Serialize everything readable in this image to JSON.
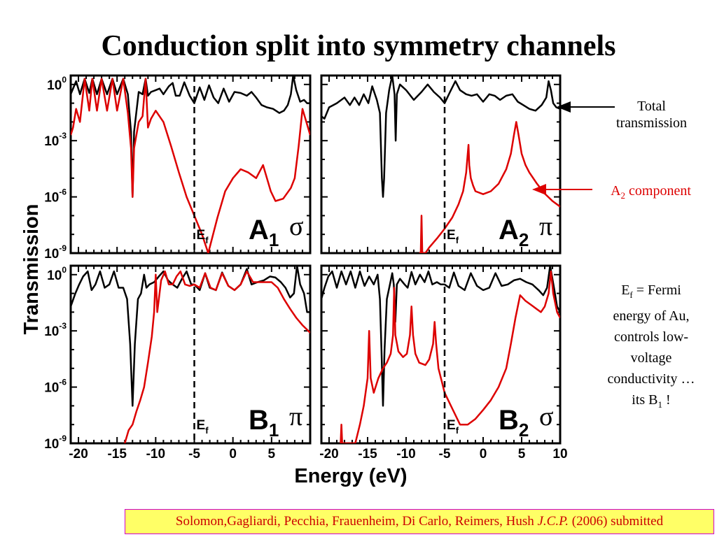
{
  "title": "Conduction split into symmetry channels",
  "annotations": {
    "total_line1": "Total",
    "total_line2": "transmission",
    "a2_base": "A",
    "a2_sub": "2",
    "a2_rest": " component",
    "fermi": [
      "E",
      "f",
      " = Fermi",
      "energy of Au,",
      "controls low-",
      "voltage",
      "conductivity …",
      "its B",
      "1",
      " !"
    ]
  },
  "citation": {
    "authors": "Solomon,Gagliardi, Pecchia, Frauenheim, Di Carlo, Reimers, Hush ",
    "journal": "J.C.P.",
    "rest": " (2006) submitted"
  },
  "colors": {
    "total": "#000000",
    "component": "#dd0000",
    "citation_bg": "#ffff66",
    "citation_border": "#d000d0"
  },
  "chart_data": {
    "type": "line",
    "xlabel": "Energy (eV)",
    "ylabel": "Transmission",
    "log_y": true,
    "ylim": [
      1e-09,
      3
    ],
    "fermi_energy": -5,
    "fermi_label": [
      "E",
      "f"
    ],
    "y_ticks": [
      {
        "base": "10",
        "exp": "0"
      },
      {
        "base": "10",
        "exp": "-3"
      },
      {
        "base": "10",
        "exp": "-6"
      },
      {
        "base": "10",
        "exp": "-9"
      }
    ],
    "x_ticks": [
      [
        "-20",
        "-15",
        "-10",
        "-5",
        "0",
        "5"
      ],
      [
        "-20",
        "-15",
        "-10",
        "-5",
        "0",
        "5",
        "10"
      ]
    ],
    "panels": [
      {
        "label": "A",
        "sub": "1",
        "greek": "σ",
        "xlim": [
          -21,
          10
        ],
        "series": [
          {
            "name": "Total",
            "x": [
              -21,
              -20.3,
              -19.8,
              -19.2,
              -18.6,
              -18.2,
              -17.6,
              -17,
              -16.3,
              -15.6,
              -15,
              -14.2,
              -13.6,
              -13.2,
              -13,
              -12.8,
              -12.2,
              -11.7,
              -11.3,
              -11,
              -10.6,
              -10,
              -9.5,
              -9,
              -8.3,
              -7.8,
              -7.4,
              -6.9,
              -6.3,
              -5.6,
              -5,
              -4.3,
              -3.7,
              -3.1,
              -2.5,
              -1.9,
              -1.2,
              -0.5,
              0.2,
              1,
              1.8,
              2.4,
              3,
              3.7,
              4.4,
              5.2,
              6,
              6.6,
              7.1,
              7.5,
              7.8,
              8.2,
              8.7,
              9.2,
              9.6,
              10
            ],
            "y": [
              0.3,
              1.5,
              0.3,
              2,
              0.35,
              2,
              0.3,
              2,
              0.3,
              2,
              0.3,
              2,
              0.3,
              0.003,
              1e-06,
              0.003,
              0.4,
              0.3,
              2,
              0.25,
              0.4,
              0.5,
              0.6,
              0.3,
              0.8,
              1.2,
              0.25,
              0.25,
              1.3,
              0.25,
              0.1,
              0.7,
              0.15,
              0.9,
              0.2,
              0.1,
              0.6,
              0.12,
              0.4,
              0.35,
              0.25,
              0.4,
              0.2,
              0.08,
              0.06,
              0.05,
              0.03,
              0.04,
              0.08,
              0.3,
              3,
              0.5,
              0.12,
              0.15,
              0.1,
              0.1
            ]
          },
          {
            "name": "A1 component",
            "x": [
              -21,
              -20.7,
              -20.3,
              -19.8,
              -19.2,
              -18.6,
              -18.2,
              -17.6,
              -17,
              -16.3,
              -15.6,
              -15,
              -14.2,
              -13.6,
              -13.2,
              -13,
              -12.8,
              -12.2,
              -11.7,
              -11.3,
              -11,
              -10.6,
              -10,
              -9,
              -8,
              -7,
              -6,
              -5,
              -4,
              -3.2,
              -2,
              -1,
              0,
              1,
              2,
              3,
              3.9,
              4.4,
              4.9,
              5.5,
              6.5,
              7.5,
              8,
              8.5,
              9,
              10
            ],
            "y": [
              0.002,
              0.005,
              0.05,
              0.01,
              2,
              0.04,
              2,
              0.04,
              2,
              0.04,
              2,
              0.04,
              2,
              0.03,
              0.0004,
              1e-06,
              0.0004,
              0.01,
              0.02,
              2,
              0.005,
              0.015,
              0.04,
              0.01,
              0.0005,
              2e-05,
              1e-06,
              1e-07,
              1e-08,
              1e-09,
              8e-08,
              2e-06,
              1e-05,
              3e-05,
              2e-05,
              1e-05,
              5e-05,
              1e-05,
              2e-06,
              6e-07,
              8e-07,
              3e-06,
              1e-05,
              0.0005,
              0.05,
              0.002
            ]
          }
        ]
      },
      {
        "label": "A",
        "sub": "2",
        "greek": "π",
        "xlim": [
          -21,
          10
        ],
        "series": [
          {
            "name": "Total",
            "x": [
              -21,
              -20.6,
              -20,
              -19,
              -18,
              -17.3,
              -16.7,
              -16.1,
              -15.5,
              -14.9,
              -14.4,
              -13.8,
              -13.4,
              -13.15,
              -13,
              -12.85,
              -12.6,
              -12.2,
              -11.8,
              -11.5,
              -11.35,
              -11.2,
              -10.8,
              -10,
              -9,
              -8,
              -7.2,
              -6.4,
              -5.6,
              -5,
              -4.3,
              -3.6,
              -3,
              -2.2,
              -1.5,
              -0.8,
              0,
              0.8,
              1.5,
              2.2,
              3,
              3.8,
              4.5,
              5.2,
              6,
              6.8,
              7.6,
              8.2,
              8.5,
              8.8,
              9.1,
              9.5,
              10
            ],
            "y": [
              0.02,
              0.015,
              0.06,
              0.1,
              0.2,
              0.08,
              0.2,
              0.08,
              0.3,
              0.1,
              0.8,
              0.15,
              0.03,
              1e-05,
              1e-06,
              1e-05,
              0.03,
              0.5,
              3,
              0.3,
              0.001,
              0.3,
              1,
              0.5,
              0.15,
              0.4,
              1,
              0.4,
              0.2,
              0.1,
              0.4,
              1.5,
              0.5,
              0.3,
              0.25,
              0.3,
              0.12,
              0.3,
              0.25,
              0.15,
              0.25,
              0.3,
              0.12,
              0.08,
              0.05,
              0.04,
              0.08,
              0.2,
              1.5,
              0.5,
              0.1,
              0.06,
              0.05
            ]
          },
          {
            "name": "A2 component",
            "x": [
              -8.3,
              -8.1,
              -8,
              -7.9,
              -7.7,
              -7.5,
              -7,
              -6,
              -5,
              -4,
              -3.2,
              -2.6,
              -2.2,
              -2,
              -1.9,
              -1.8,
              -1.6,
              -1.3,
              -1,
              0,
              1,
              2,
              3,
              3.6,
              4,
              4.3,
              4.6,
              5,
              5.5,
              6,
              7,
              8,
              9,
              10
            ],
            "y": [
              1e-09,
              1e-09,
              1e-07,
              1e-09,
              1e-09,
              1e-09,
              2e-09,
              6e-09,
              2e-08,
              8e-08,
              4e-07,
              2e-06,
              2e-05,
              0.0002,
              0.0006,
              5e-05,
              1e-05,
              4e-06,
              2e-06,
              1.4e-06,
              2e-06,
              5e-06,
              3e-05,
              0.0002,
              0.002,
              0.01,
              0.002,
              0.0002,
              5e-05,
              2e-05,
              5e-06,
              1.5e-06,
              6e-07,
              3e-07
            ]
          }
        ]
      },
      {
        "label": "B",
        "sub": "1",
        "greek": "π",
        "xlim": [
          -21,
          10
        ],
        "series": [
          {
            "name": "Total",
            "x": [
              -21,
              -20.4,
              -19.9,
              -19.4,
              -18.8,
              -18.3,
              -17.8,
              -17.2,
              -16.6,
              -16,
              -15.4,
              -14.8,
              -14.2,
              -13.7,
              -13.3,
              -13,
              -12.7,
              -12.3,
              -11.9,
              -11.5,
              -11.2,
              -10.8,
              -10.2,
              -9.6,
              -9,
              -8.4,
              -7.8,
              -7.2,
              -6.6,
              -6,
              -5.4,
              -5,
              -4.3,
              -3.6,
              -3,
              -2.2,
              -1.4,
              -0.6,
              0.2,
              1,
              1.8,
              2.4,
              3.2,
              4,
              4.8,
              5.5,
              6.2,
              6.8,
              7.4,
              7.9,
              8.3,
              8.7,
              9.2,
              9.6,
              10
            ],
            "y": [
              0.02,
              0.1,
              0.3,
              0.8,
              1.5,
              0.15,
              0.3,
              1.5,
              0.2,
              0.3,
              1.5,
              0.2,
              0.2,
              0.05,
              0.0002,
              1e-07,
              0.0002,
              0.05,
              0.1,
              1,
              0.2,
              0.3,
              0.4,
              0.8,
              1.5,
              0.5,
              0.3,
              0.2,
              0.6,
              1.5,
              0.3,
              0.3,
              0.15,
              1.2,
              0.2,
              0.15,
              1.3,
              0.25,
              0.15,
              0.3,
              2,
              0.3,
              0.4,
              0.5,
              0.8,
              0.7,
              0.4,
              0.2,
              0.06,
              0.1,
              3,
              0.3,
              0.1,
              0.01,
              0.01
            ]
          },
          {
            "name": "B1 component",
            "x": [
              -14,
              -13.5,
              -13,
              -12.5,
              -12,
              -11.5,
              -11,
              -10.5,
              -10.2,
              -10,
              -9.8,
              -9.3,
              -8.8,
              -8.3,
              -7.8,
              -7.3,
              -6.8,
              -6.2,
              -5.6,
              -5,
              -4.3,
              -3.6,
              -2.9,
              -2.2,
              -1.4,
              -0.6,
              0.2,
              1,
              1.8,
              2.6,
              3.4,
              4.2,
              5,
              5.8,
              6.6,
              7.4,
              8.2,
              9,
              10
            ],
            "y": [
              1e-09,
              5e-09,
              1e-08,
              5e-08,
              2e-07,
              1e-06,
              2e-05,
              0.0005,
              0.01,
              1,
              0.01,
              0.5,
              1.5,
              0.3,
              0.3,
              0.8,
              1.5,
              0.3,
              0.25,
              0.3,
              0.2,
              1.2,
              0.2,
              0.15,
              1.2,
              0.25,
              0.15,
              0.3,
              1.5,
              0.4,
              0.4,
              0.4,
              0.4,
              0.2,
              0.05,
              0.015,
              0.005,
              0.002,
              0.0008
            ]
          }
        ]
      },
      {
        "label": "B",
        "sub": "2",
        "greek": "σ",
        "xlim": [
          -21,
          10
        ],
        "series": [
          {
            "name": "Total",
            "x": [
              -21,
              -20.6,
              -20.1,
              -19.6,
              -19,
              -18.4,
              -17.8,
              -17.2,
              -16.6,
              -16,
              -15.4,
              -14.8,
              -14.2,
              -13.7,
              -13.4,
              -13.2,
              -13,
              -12.8,
              -12.5,
              -12.1,
              -11.8,
              -11.6,
              -11.4,
              -11.2,
              -10.8,
              -10.2,
              -9.8,
              -9.3,
              -8.8,
              -8.2,
              -7.6,
              -7.1,
              -6.6,
              -6,
              -5.5,
              -5,
              -4.4,
              -3.8,
              -3.2,
              -2.4,
              -1.6,
              -0.8,
              0,
              0.8,
              1.6,
              2.4,
              3.2,
              4,
              4.8,
              5.6,
              6.4,
              7.2,
              7.8,
              8.3,
              8.7,
              9.2,
              9.6,
              10
            ],
            "y": [
              0.05,
              0.2,
              0.8,
              1.5,
              0.2,
              1.5,
              0.3,
              1.5,
              0.2,
              1.5,
              0.25,
              0.8,
              0.3,
              1,
              0.05,
              0.0001,
              1e-07,
              0.0001,
              0.05,
              0.3,
              1.2,
              0.3,
              0.003,
              0.3,
              0.6,
              0.3,
              0.2,
              1.4,
              0.3,
              1,
              0.4,
              1.5,
              0.3,
              0.4,
              0.3,
              0.3,
              0.2,
              1.3,
              0.25,
              0.15,
              1.2,
              0.25,
              0.15,
              0.2,
              1.2,
              0.25,
              0.3,
              0.5,
              0.6,
              0.4,
              0.3,
              0.15,
              0.08,
              0.2,
              3,
              0.2,
              0.02,
              0.01
            ]
          },
          {
            "name": "B2 component",
            "x": [
              -18.5,
              -18.4,
              -18.3,
              -18.2,
              -16.6,
              -16,
              -15.5,
              -15,
              -14.8,
              -14.6,
              -14.2,
              -13.6,
              -13,
              -12.5,
              -12,
              -11.7,
              -11.55,
              -11.4,
              -11,
              -10.4,
              -9.9,
              -9.5,
              -9.3,
              -9.1,
              -8.8,
              -8.3,
              -7.5,
              -7,
              -6.5,
              -6.3,
              -6.1,
              -5.8,
              -5,
              -4,
              -3,
              -2,
              -1,
              0,
              1,
              2,
              3,
              3.6,
              4.2,
              4.8,
              5.5,
              6.5,
              7.5,
              8,
              8.5,
              8.8,
              9.1,
              9.6,
              10
            ],
            "y": [
              1e-09,
              1e-08,
              1e-09,
              1e-09,
              1e-09,
              1e-08,
              1e-07,
              3e-06,
              0.001,
              3e-06,
              5e-07,
              3e-06,
              1e-05,
              2e-05,
              6e-05,
              0.0006,
              0.2,
              0.0006,
              8e-05,
              4e-05,
              6e-05,
              0.0006,
              0.02,
              0.0006,
              6e-05,
              2e-05,
              1.5e-05,
              3e-05,
              0.0002,
              0.003,
              0.0002,
              1e-05,
              5e-07,
              7e-08,
              1e-08,
              1e-08,
              2e-08,
              6e-08,
              2e-07,
              1e-06,
              1e-05,
              0.0002,
              0.005,
              0.08,
              0.04,
              0.02,
              0.01,
              0.02,
              0.1,
              1.5,
              0.1,
              0.01,
              0.005
            ]
          }
        ]
      }
    ]
  }
}
